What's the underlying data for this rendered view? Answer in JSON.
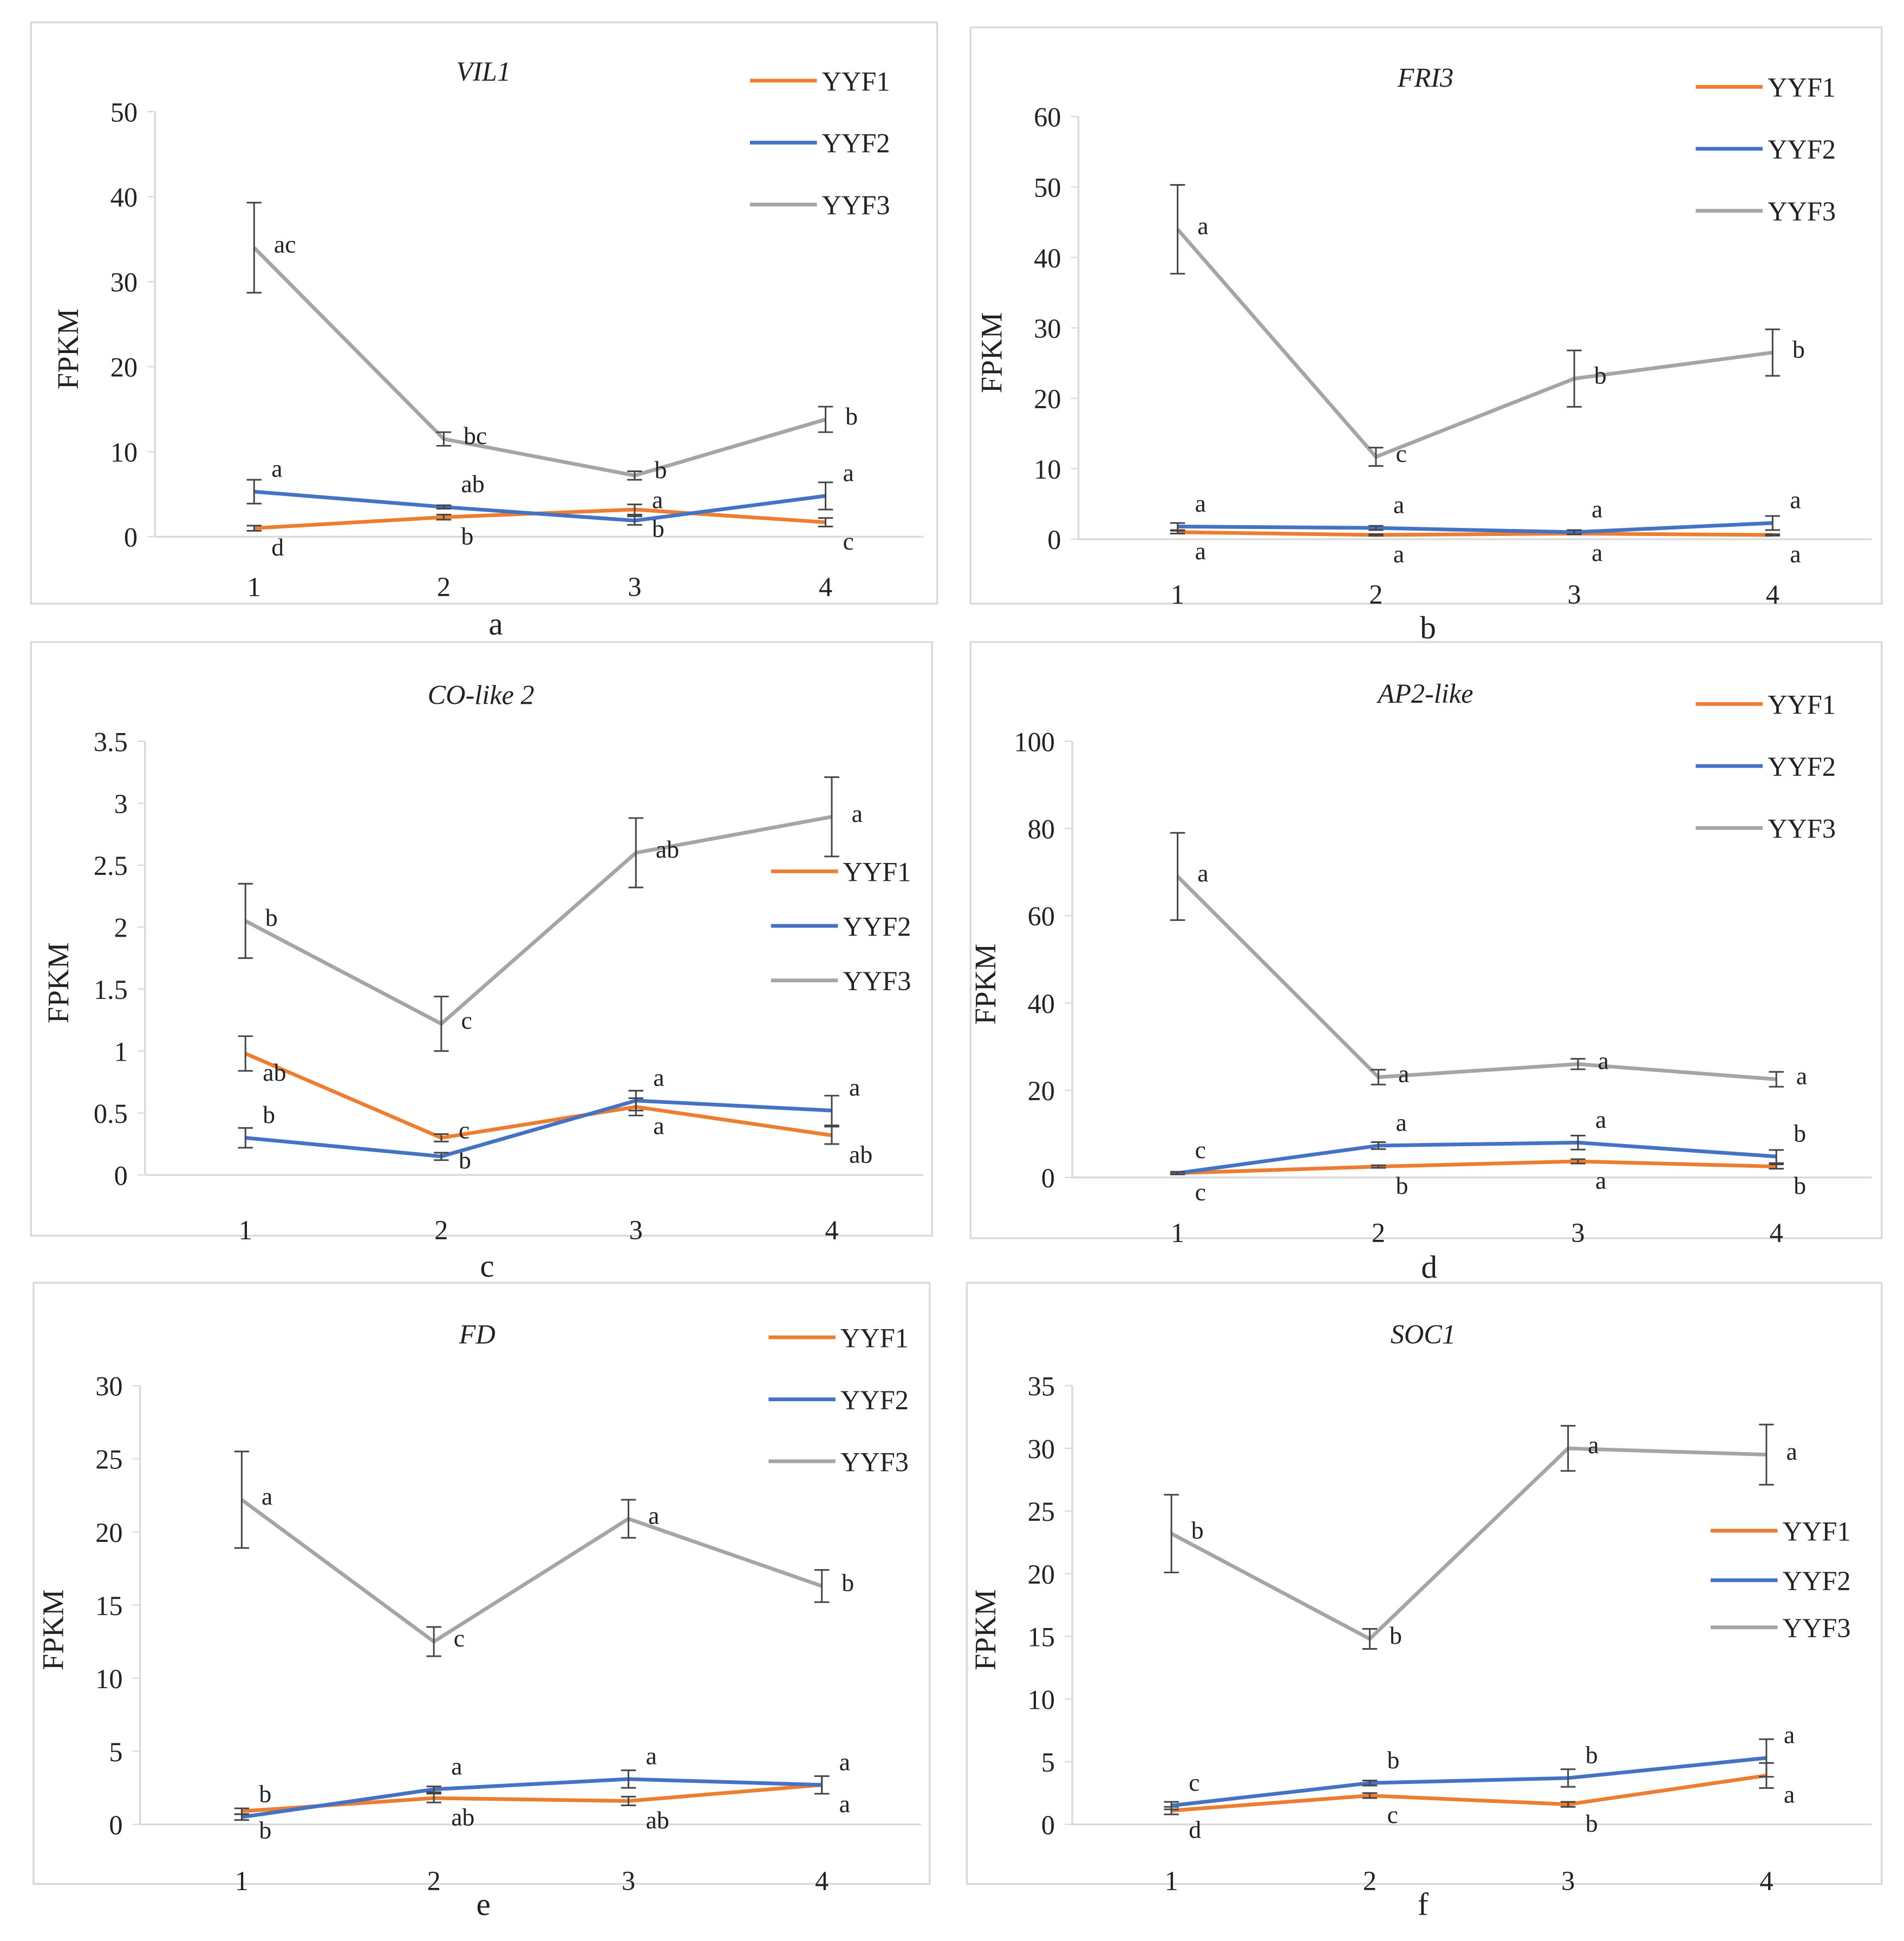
{
  "colors": {
    "YYF1": "#ed7d31",
    "YYF2": "#4472c4",
    "YYF3": "#a5a5a5"
  },
  "chart_data": [
    {
      "type": "line",
      "panel": "a",
      "title": "VIL1",
      "ylabel": "FPKM",
      "xlabel": "",
      "categories": [
        "1",
        "2",
        "3",
        "4"
      ],
      "ylim": [
        0,
        50
      ],
      "yticks": [
        0,
        10,
        20,
        30,
        40,
        50
      ],
      "legend": "top-right",
      "series": [
        {
          "name": "YYF1",
          "values": [
            1.0,
            2.3,
            3.2,
            1.7
          ],
          "errors": [
            0.3,
            0.3,
            0.6,
            0.5
          ],
          "letters": [
            "d",
            "b",
            "b",
            "c"
          ]
        },
        {
          "name": "YYF2",
          "values": [
            5.3,
            3.5,
            1.9,
            4.8
          ],
          "errors": [
            1.4,
            0.2,
            0.5,
            1.6
          ],
          "letters": [
            "a",
            "ab",
            "a",
            "a"
          ]
        },
        {
          "name": "YYF3",
          "values": [
            34.0,
            11.5,
            7.2,
            13.8
          ],
          "errors": [
            5.3,
            0.8,
            0.5,
            1.5
          ],
          "letters": [
            "ac",
            "bc",
            "b",
            "b"
          ]
        }
      ]
    },
    {
      "type": "line",
      "panel": "b",
      "title": "FRI3",
      "ylabel": "FPKM",
      "xlabel": "",
      "categories": [
        "1",
        "2",
        "3",
        "4"
      ],
      "ylim": [
        0,
        60
      ],
      "yticks": [
        0,
        10,
        20,
        30,
        40,
        50,
        60
      ],
      "legend": "top-right",
      "series": [
        {
          "name": "YYF1",
          "values": [
            1.0,
            0.6,
            0.8,
            0.6
          ],
          "errors": [
            0.2,
            0.1,
            0.1,
            0.1
          ],
          "letters": [
            "a",
            "a",
            "a",
            "a"
          ]
        },
        {
          "name": "YYF2",
          "values": [
            1.8,
            1.6,
            1.0,
            2.3
          ],
          "errors": [
            0.5,
            0.3,
            0.3,
            1.0
          ],
          "letters": [
            "a",
            "a",
            "a",
            "a"
          ]
        },
        {
          "name": "YYF3",
          "values": [
            44.0,
            11.7,
            22.8,
            26.5
          ],
          "errors": [
            6.3,
            1.3,
            4.0,
            3.3
          ],
          "letters": [
            "a",
            "c",
            "b",
            "b"
          ]
        }
      ]
    },
    {
      "type": "line",
      "panel": "c",
      "title": "CO-like 2",
      "ylabel": "FPKM",
      "xlabel": "",
      "categories": [
        "1",
        "2",
        "3",
        "4"
      ],
      "ylim": [
        0,
        3.5
      ],
      "yticks": [
        0,
        0.5,
        1,
        1.5,
        2,
        2.5,
        3,
        3.5
      ],
      "legend": "right",
      "series": [
        {
          "name": "YYF1",
          "values": [
            0.98,
            0.3,
            0.55,
            0.32
          ],
          "errors": [
            0.14,
            0.03,
            0.07,
            0.07
          ],
          "letters": [
            "ab",
            "b",
            "a",
            "ab"
          ]
        },
        {
          "name": "YYF2",
          "values": [
            0.3,
            0.15,
            0.6,
            0.52
          ],
          "errors": [
            0.08,
            0.03,
            0.08,
            0.12
          ],
          "letters": [
            "b",
            "c",
            "a",
            "a"
          ]
        },
        {
          "name": "YYF3",
          "values": [
            2.05,
            1.22,
            2.6,
            2.89
          ],
          "errors": [
            0.3,
            0.22,
            0.28,
            0.32
          ],
          "letters": [
            "b",
            "c",
            "ab",
            "a"
          ]
        }
      ]
    },
    {
      "type": "line",
      "panel": "d",
      "title": "AP2-like",
      "ylabel": "FPKM",
      "xlabel": "",
      "categories": [
        "1",
        "2",
        "3",
        "4"
      ],
      "ylim": [
        0,
        100
      ],
      "yticks": [
        0,
        20,
        40,
        60,
        80,
        100
      ],
      "legend": "top-right",
      "series": [
        {
          "name": "YYF1",
          "values": [
            1.0,
            2.5,
            3.7,
            2.5
          ],
          "errors": [
            0.2,
            0.3,
            0.5,
            0.5
          ],
          "letters": [
            "c",
            "b",
            "a",
            "b"
          ]
        },
        {
          "name": "YYF2",
          "values": [
            1.0,
            7.3,
            8.0,
            4.8
          ],
          "errors": [
            0.3,
            0.8,
            1.6,
            1.5
          ],
          "letters": [
            "c",
            "a",
            "a",
            "b"
          ]
        },
        {
          "name": "YYF3",
          "values": [
            69.0,
            23.0,
            26.0,
            22.5
          ],
          "errors": [
            10.0,
            1.7,
            1.2,
            1.7
          ],
          "letters": [
            "a",
            "a",
            "a",
            "a"
          ]
        }
      ]
    },
    {
      "type": "line",
      "panel": "e",
      "title": "FD",
      "ylabel": "FPKM",
      "xlabel": "",
      "categories": [
        "1",
        "2",
        "3",
        "4"
      ],
      "ylim": [
        0,
        30
      ],
      "yticks": [
        0,
        5,
        10,
        15,
        20,
        25,
        30
      ],
      "legend": "top-right",
      "series": [
        {
          "name": "YYF1",
          "values": [
            0.9,
            1.8,
            1.6,
            2.7
          ],
          "errors": [
            0.2,
            0.3,
            0.3,
            0.6
          ],
          "letters": [
            "b",
            "ab",
            "ab",
            "a"
          ]
        },
        {
          "name": "YYF2",
          "values": [
            0.5,
            2.4,
            3.1,
            2.7
          ],
          "errors": [
            0.2,
            0.2,
            0.6,
            0.6
          ],
          "letters": [
            "b",
            "a",
            "a",
            "a"
          ]
        },
        {
          "name": "YYF3",
          "values": [
            22.2,
            12.5,
            20.9,
            16.3
          ],
          "errors": [
            3.3,
            1.0,
            1.3,
            1.1
          ],
          "letters": [
            "a",
            "c",
            "a",
            "b"
          ]
        }
      ]
    },
    {
      "type": "line",
      "panel": "f",
      "title": "SOC1",
      "ylabel": "FPKM",
      "xlabel": "",
      "categories": [
        "1",
        "2",
        "3",
        "4"
      ],
      "ylim": [
        0,
        35
      ],
      "yticks": [
        0,
        5,
        10,
        15,
        20,
        25,
        30,
        35
      ],
      "legend": "right",
      "series": [
        {
          "name": "YYF1",
          "values": [
            1.1,
            2.3,
            1.6,
            3.9
          ],
          "errors": [
            0.3,
            0.2,
            0.2,
            1.0
          ],
          "letters": [
            "d",
            "c",
            "b",
            "a"
          ]
        },
        {
          "name": "YYF2",
          "values": [
            1.5,
            3.3,
            3.7,
            5.3
          ],
          "errors": [
            0.3,
            0.2,
            0.7,
            1.5
          ],
          "letters": [
            "c",
            "b",
            "b",
            "a"
          ]
        },
        {
          "name": "YYF3",
          "values": [
            23.2,
            14.8,
            30.0,
            29.5
          ],
          "errors": [
            3.1,
            0.8,
            1.8,
            2.4
          ],
          "letters": [
            "b",
            "b",
            "a",
            "a"
          ]
        }
      ]
    }
  ]
}
